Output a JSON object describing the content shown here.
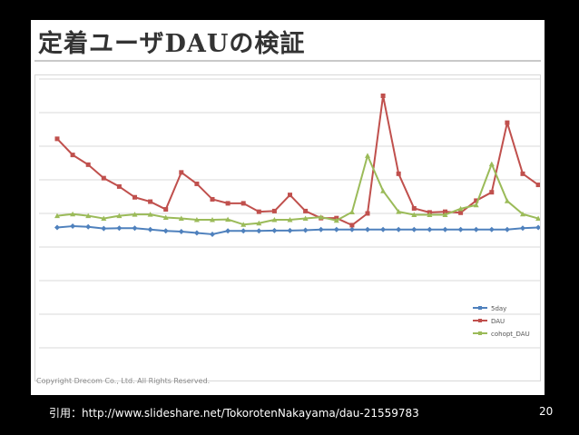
{
  "slide": {
    "title": "定着ユーザDAUの検証",
    "copyright": "Copyright Drecom Co., Ltd. All Rights Reserved.",
    "citation": "引用：http://www.slideshare.net/TokorotenNakayama/dau-21559783",
    "page_number": "20"
  },
  "colors": {
    "5day": "#4f81bd",
    "DAU": "#c0504d",
    "cohort_DAU": "#9bbb59",
    "grid": "#d9d9d9"
  },
  "chart_data": {
    "type": "line",
    "title": "",
    "xlabel": "",
    "ylabel": "",
    "ylim": [
      0,
      8
    ],
    "grid": true,
    "legend_position": "bottom-right",
    "x": [
      1,
      2,
      3,
      4,
      5,
      6,
      7,
      8,
      9,
      10,
      11,
      12,
      13,
      14,
      15,
      16,
      17,
      18,
      19,
      20,
      21,
      22,
      23,
      24,
      25,
      26,
      27,
      28,
      29,
      30,
      31,
      32
    ],
    "series": [
      {
        "name": "5day",
        "values": [
          3.58,
          3.62,
          3.6,
          3.55,
          3.56,
          3.56,
          3.52,
          3.48,
          3.46,
          3.42,
          3.38,
          3.48,
          3.48,
          3.48,
          3.49,
          3.49,
          3.5,
          3.52,
          3.52,
          3.52,
          3.52,
          3.52,
          3.52,
          3.52,
          3.52,
          3.52,
          3.52,
          3.52,
          3.52,
          3.52,
          3.56,
          3.58
        ]
      },
      {
        "name": "DAU",
        "values": [
          6.22,
          5.74,
          5.45,
          5.05,
          4.8,
          4.48,
          4.35,
          4.12,
          5.22,
          4.88,
          4.42,
          4.3,
          4.3,
          4.05,
          4.07,
          4.55,
          4.07,
          3.86,
          3.86,
          3.65,
          4.0,
          7.5,
          5.18,
          4.15,
          4.03,
          4.05,
          4.02,
          4.38,
          4.63,
          6.7,
          5.18,
          4.85
        ]
      },
      {
        "name": "cohopt_DAU",
        "values": [
          3.93,
          3.98,
          3.93,
          3.85,
          3.93,
          3.97,
          3.97,
          3.88,
          3.85,
          3.81,
          3.81,
          3.82,
          3.67,
          3.71,
          3.81,
          3.81,
          3.85,
          3.89,
          3.79,
          4.04,
          5.72,
          4.67,
          4.05,
          3.96,
          3.96,
          3.96,
          4.14,
          4.25,
          5.47,
          4.37,
          3.98,
          3.85
        ]
      }
    ]
  }
}
